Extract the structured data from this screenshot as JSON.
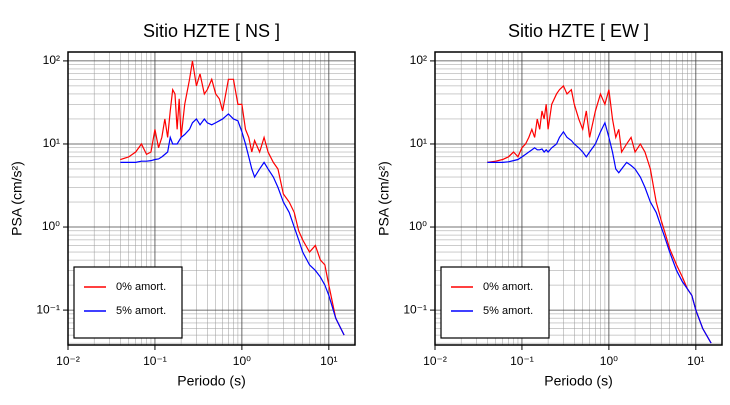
{
  "chart_data": [
    {
      "type": "line",
      "title": "Sitio HZTE [ NS ]",
      "xlabel": "Periodo (s)",
      "ylabel": "PSA (cm/s²)",
      "xscale": "log",
      "yscale": "log",
      "grid": true,
      "minor_grid": true,
      "legend": "lower left",
      "xlim": [
        0.01,
        20
      ],
      "ylim": [
        0.038,
        128
      ],
      "xticks": [
        {
          "value": 0.01,
          "label": "10⁻²"
        },
        {
          "value": 0.1,
          "label": "10⁻¹"
        },
        {
          "value": 1,
          "label": "10⁰"
        },
        {
          "value": 10,
          "label": "10¹"
        }
      ],
      "yticks": [
        {
          "value": 0.1,
          "label": "10⁻¹"
        },
        {
          "value": 1,
          "label": "10⁰"
        },
        {
          "value": 10,
          "label": "10¹"
        },
        {
          "value": 100,
          "label": "10²"
        }
      ],
      "x": [
        0.04,
        0.05,
        0.06,
        0.07,
        0.08,
        0.09,
        0.1,
        0.11,
        0.12,
        0.13,
        0.14,
        0.15,
        0.16,
        0.17,
        0.18,
        0.19,
        0.2,
        0.22,
        0.25,
        0.27,
        0.3,
        0.33,
        0.37,
        0.4,
        0.45,
        0.5,
        0.55,
        0.6,
        0.7,
        0.8,
        0.9,
        1.0,
        1.1,
        1.2,
        1.3,
        1.4,
        1.6,
        1.8,
        2.0,
        2.3,
        2.6,
        3.0,
        3.5,
        4,
        4.5,
        5,
        6,
        7,
        8,
        9,
        10,
        12,
        15
      ],
      "series": [
        {
          "name": "0% amort.",
          "color": "#ff0000",
          "values": [
            6.5,
            7,
            8,
            10,
            7.5,
            8,
            15,
            9,
            12,
            20,
            12,
            25,
            45,
            40,
            15,
            35,
            12,
            30,
            60,
            100,
            50,
            70,
            40,
            45,
            60,
            40,
            35,
            25,
            60,
            60,
            30,
            30,
            15,
            12,
            8,
            11,
            8,
            12,
            8,
            6,
            5,
            2.5,
            2,
            1.5,
            0.9,
            0.7,
            0.5,
            0.6,
            0.4,
            0.35,
            0.2,
            0.08,
            0.05
          ]
        },
        {
          "name": "5% amort.",
          "color": "#0000ff",
          "values": [
            6,
            6,
            6,
            6.2,
            6.2,
            6.3,
            6.5,
            6.6,
            7,
            7.5,
            8,
            12,
            10,
            10,
            10,
            11,
            12,
            13,
            15,
            18,
            20,
            17,
            20,
            18,
            17,
            18,
            19,
            20,
            23,
            20,
            19,
            14,
            10,
            7,
            5,
            4,
            5,
            6,
            5,
            4,
            3,
            2,
            1.5,
            1.0,
            0.7,
            0.5,
            0.35,
            0.3,
            0.25,
            0.2,
            0.15,
            0.08,
            0.05
          ]
        }
      ]
    },
    {
      "type": "line",
      "title": "Sitio HZTE [ EW ]",
      "xlabel": "Periodo (s)",
      "ylabel": "PSA (cm/s²)",
      "xscale": "log",
      "yscale": "log",
      "grid": true,
      "minor_grid": true,
      "legend": "lower left",
      "xlim": [
        0.01,
        20
      ],
      "ylim": [
        0.038,
        128
      ],
      "xticks": [
        {
          "value": 0.01,
          "label": "10⁻²"
        },
        {
          "value": 0.1,
          "label": "10⁻¹"
        },
        {
          "value": 1,
          "label": "10⁰"
        },
        {
          "value": 10,
          "label": "10¹"
        }
      ],
      "yticks": [
        {
          "value": 0.1,
          "label": "10⁻¹"
        },
        {
          "value": 1,
          "label": "10⁰"
        },
        {
          "value": 10,
          "label": "10¹"
        },
        {
          "value": 100,
          "label": "10²"
        }
      ],
      "x": [
        0.04,
        0.05,
        0.06,
        0.07,
        0.08,
        0.09,
        0.1,
        0.11,
        0.12,
        0.13,
        0.14,
        0.15,
        0.16,
        0.17,
        0.18,
        0.19,
        0.2,
        0.22,
        0.25,
        0.27,
        0.3,
        0.33,
        0.37,
        0.4,
        0.45,
        0.5,
        0.55,
        0.6,
        0.7,
        0.8,
        0.9,
        1.0,
        1.1,
        1.2,
        1.3,
        1.4,
        1.6,
        1.8,
        2.0,
        2.3,
        2.6,
        3.0,
        3.5,
        4,
        4.5,
        5,
        6,
        7,
        8,
        9,
        10,
        12,
        15
      ],
      "series": [
        {
          "name": "0% amort.",
          "color": "#ff0000",
          "values": [
            6,
            6.2,
            6.5,
            7,
            8,
            7,
            9,
            10,
            12,
            15,
            12,
            20,
            15,
            25,
            20,
            30,
            15,
            30,
            40,
            45,
            50,
            40,
            45,
            30,
            20,
            15,
            25,
            12,
            25,
            40,
            30,
            45,
            20,
            12,
            15,
            8,
            10,
            12,
            8,
            10,
            8,
            5,
            2,
            1.2,
            0.8,
            0.55,
            0.35,
            0.25,
            0.18,
            0.15,
            0.1,
            0.06,
            0.04
          ]
        },
        {
          "name": "5% amort.",
          "color": "#0000ff",
          "values": [
            6,
            6,
            6,
            6.1,
            6.3,
            6.5,
            7,
            7.5,
            8,
            8.5,
            9,
            8.5,
            8.5,
            8.7,
            8,
            8.5,
            8,
            9,
            10,
            12,
            14,
            12,
            11,
            10,
            9,
            8,
            7,
            8,
            10,
            14,
            18,
            12,
            8,
            5,
            4.5,
            5,
            6,
            5.5,
            5,
            4,
            3,
            2,
            1.5,
            1.0,
            0.7,
            0.5,
            0.3,
            0.22,
            0.18,
            0.15,
            0.1,
            0.06,
            0.04
          ]
        }
      ]
    }
  ]
}
